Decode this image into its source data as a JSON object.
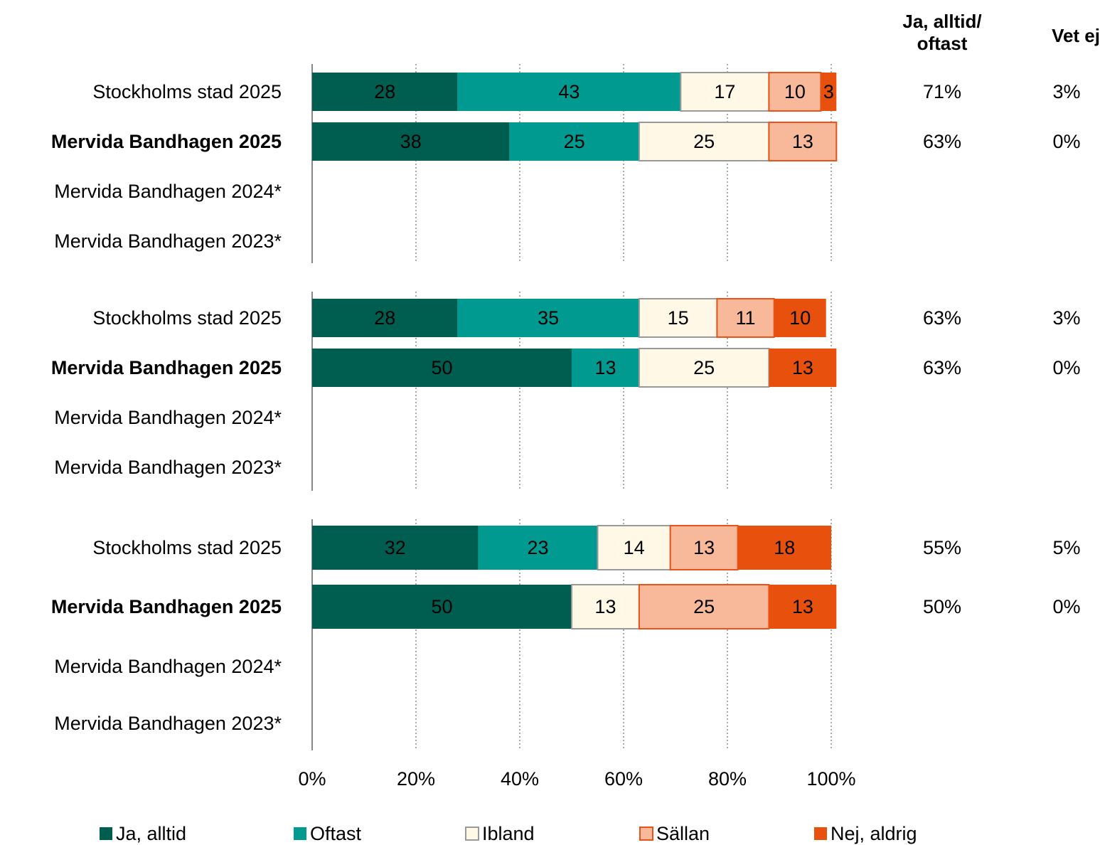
{
  "chart_data": [
    {
      "type": "bar",
      "orientation": "horizontal",
      "stacked": true,
      "categories": [
        "Stockholms stad 2025",
        "Mervida Bandhagen 2025",
        "Mervida Bandhagen 2024*",
        "Mervida Bandhagen 2023*"
      ],
      "bold_categories": [
        1
      ],
      "series": [
        {
          "name": "Ja, alltid",
          "color": "#005e50",
          "values": [
            28,
            38,
            null,
            null
          ]
        },
        {
          "name": "Oftast",
          "color": "#009a91",
          "values": [
            43,
            25,
            null,
            null
          ]
        },
        {
          "name": "Ibland",
          "color": "#fff8e6",
          "values": [
            17,
            25,
            null,
            null
          ]
        },
        {
          "name": "Sällan",
          "color": "#f8b99a",
          "values": [
            10,
            13,
            null,
            null
          ]
        },
        {
          "name": "Nej, aldrig",
          "color": "#e8500e",
          "values": [
            3,
            null,
            null,
            null
          ]
        }
      ],
      "columns": [
        {
          "header": "Ja, alltid/ oftast",
          "values": [
            71,
            63,
            null,
            null
          ],
          "value_labels": [
            "71%",
            "63%",
            null,
            null
          ]
        },
        {
          "header": "Vet ej",
          "values": [
            3,
            0,
            null,
            null
          ],
          "value_labels": [
            "3%",
            "0%",
            null,
            null
          ]
        }
      ],
      "xlim": [
        0,
        100
      ],
      "xticks": [
        {
          "value": 0,
          "label": "0%"
        },
        {
          "value": 20,
          "label": "20%"
        },
        {
          "value": 40,
          "label": "40%"
        },
        {
          "value": 60,
          "label": "60%"
        },
        {
          "value": 80,
          "label": "80%"
        },
        {
          "value": 100,
          "label": "100%"
        }
      ],
      "grid": true
    },
    {
      "type": "bar",
      "orientation": "horizontal",
      "stacked": true,
      "categories": [
        "Stockholms stad 2025",
        "Mervida Bandhagen 2025",
        "Mervida Bandhagen 2024*",
        "Mervida Bandhagen 2023*"
      ],
      "bold_categories": [
        1
      ],
      "series": [
        {
          "name": "Ja, alltid",
          "color": "#005e50",
          "values": [
            28,
            50,
            null,
            null
          ]
        },
        {
          "name": "Oftast",
          "color": "#009a91",
          "values": [
            35,
            13,
            null,
            null
          ]
        },
        {
          "name": "Ibland",
          "color": "#fff8e6",
          "values": [
            15,
            25,
            null,
            null
          ]
        },
        {
          "name": "Sällan",
          "color": "#f8b99a",
          "values": [
            11,
            null,
            null,
            null
          ]
        },
        {
          "name": "Nej, aldrig",
          "color": "#e8500e",
          "values": [
            10,
            13,
            null,
            null
          ]
        }
      ],
      "columns": [
        {
          "values": [
            63,
            63,
            null,
            null
          ],
          "value_labels": [
            "63%",
            "63%",
            null,
            null
          ]
        },
        {
          "values": [
            3,
            0,
            null,
            null
          ],
          "value_labels": [
            "3%",
            "0%",
            null,
            null
          ]
        }
      ],
      "xlim": [
        0,
        100
      ],
      "xticks": [
        {
          "value": 0,
          "label": "0%"
        },
        {
          "value": 20,
          "label": "20%"
        },
        {
          "value": 40,
          "label": "40%"
        },
        {
          "value": 60,
          "label": "60%"
        },
        {
          "value": 80,
          "label": "80%"
        },
        {
          "value": 100,
          "label": "100%"
        }
      ],
      "grid": true
    },
    {
      "type": "bar",
      "orientation": "horizontal",
      "stacked": true,
      "categories": [
        "Stockholms stad 2025",
        "Mervida Bandhagen 2025",
        "Mervida Bandhagen 2024*",
        "Mervida Bandhagen 2023*"
      ],
      "bold_categories": [
        1
      ],
      "series": [
        {
          "name": "Ja, alltid",
          "color": "#005e50",
          "values": [
            32,
            50,
            null,
            null
          ]
        },
        {
          "name": "Oftast",
          "color": "#009a91",
          "values": [
            23,
            null,
            null,
            null
          ]
        },
        {
          "name": "Ibland",
          "color": "#fff8e6",
          "values": [
            14,
            13,
            null,
            null
          ]
        },
        {
          "name": "Sällan",
          "color": "#f8b99a",
          "values": [
            13,
            25,
            null,
            null
          ]
        },
        {
          "name": "Nej, aldrig",
          "color": "#e8500e",
          "values": [
            18,
            13,
            null,
            null
          ]
        }
      ],
      "columns": [
        {
          "values": [
            55,
            50,
            null,
            null
          ],
          "value_labels": [
            "55%",
            "50%",
            null,
            null
          ]
        },
        {
          "values": [
            5,
            0,
            null,
            null
          ],
          "value_labels": [
            "5%",
            "0%",
            null,
            null
          ]
        }
      ],
      "xlim": [
        0,
        100
      ],
      "xticks": [
        {
          "value": 0,
          "label": "0%"
        },
        {
          "value": 20,
          "label": "20%"
        },
        {
          "value": 40,
          "label": "40%"
        },
        {
          "value": 60,
          "label": "60%"
        },
        {
          "value": 80,
          "label": "80%"
        },
        {
          "value": 100,
          "label": "100%"
        }
      ],
      "grid": true
    }
  ]
}
